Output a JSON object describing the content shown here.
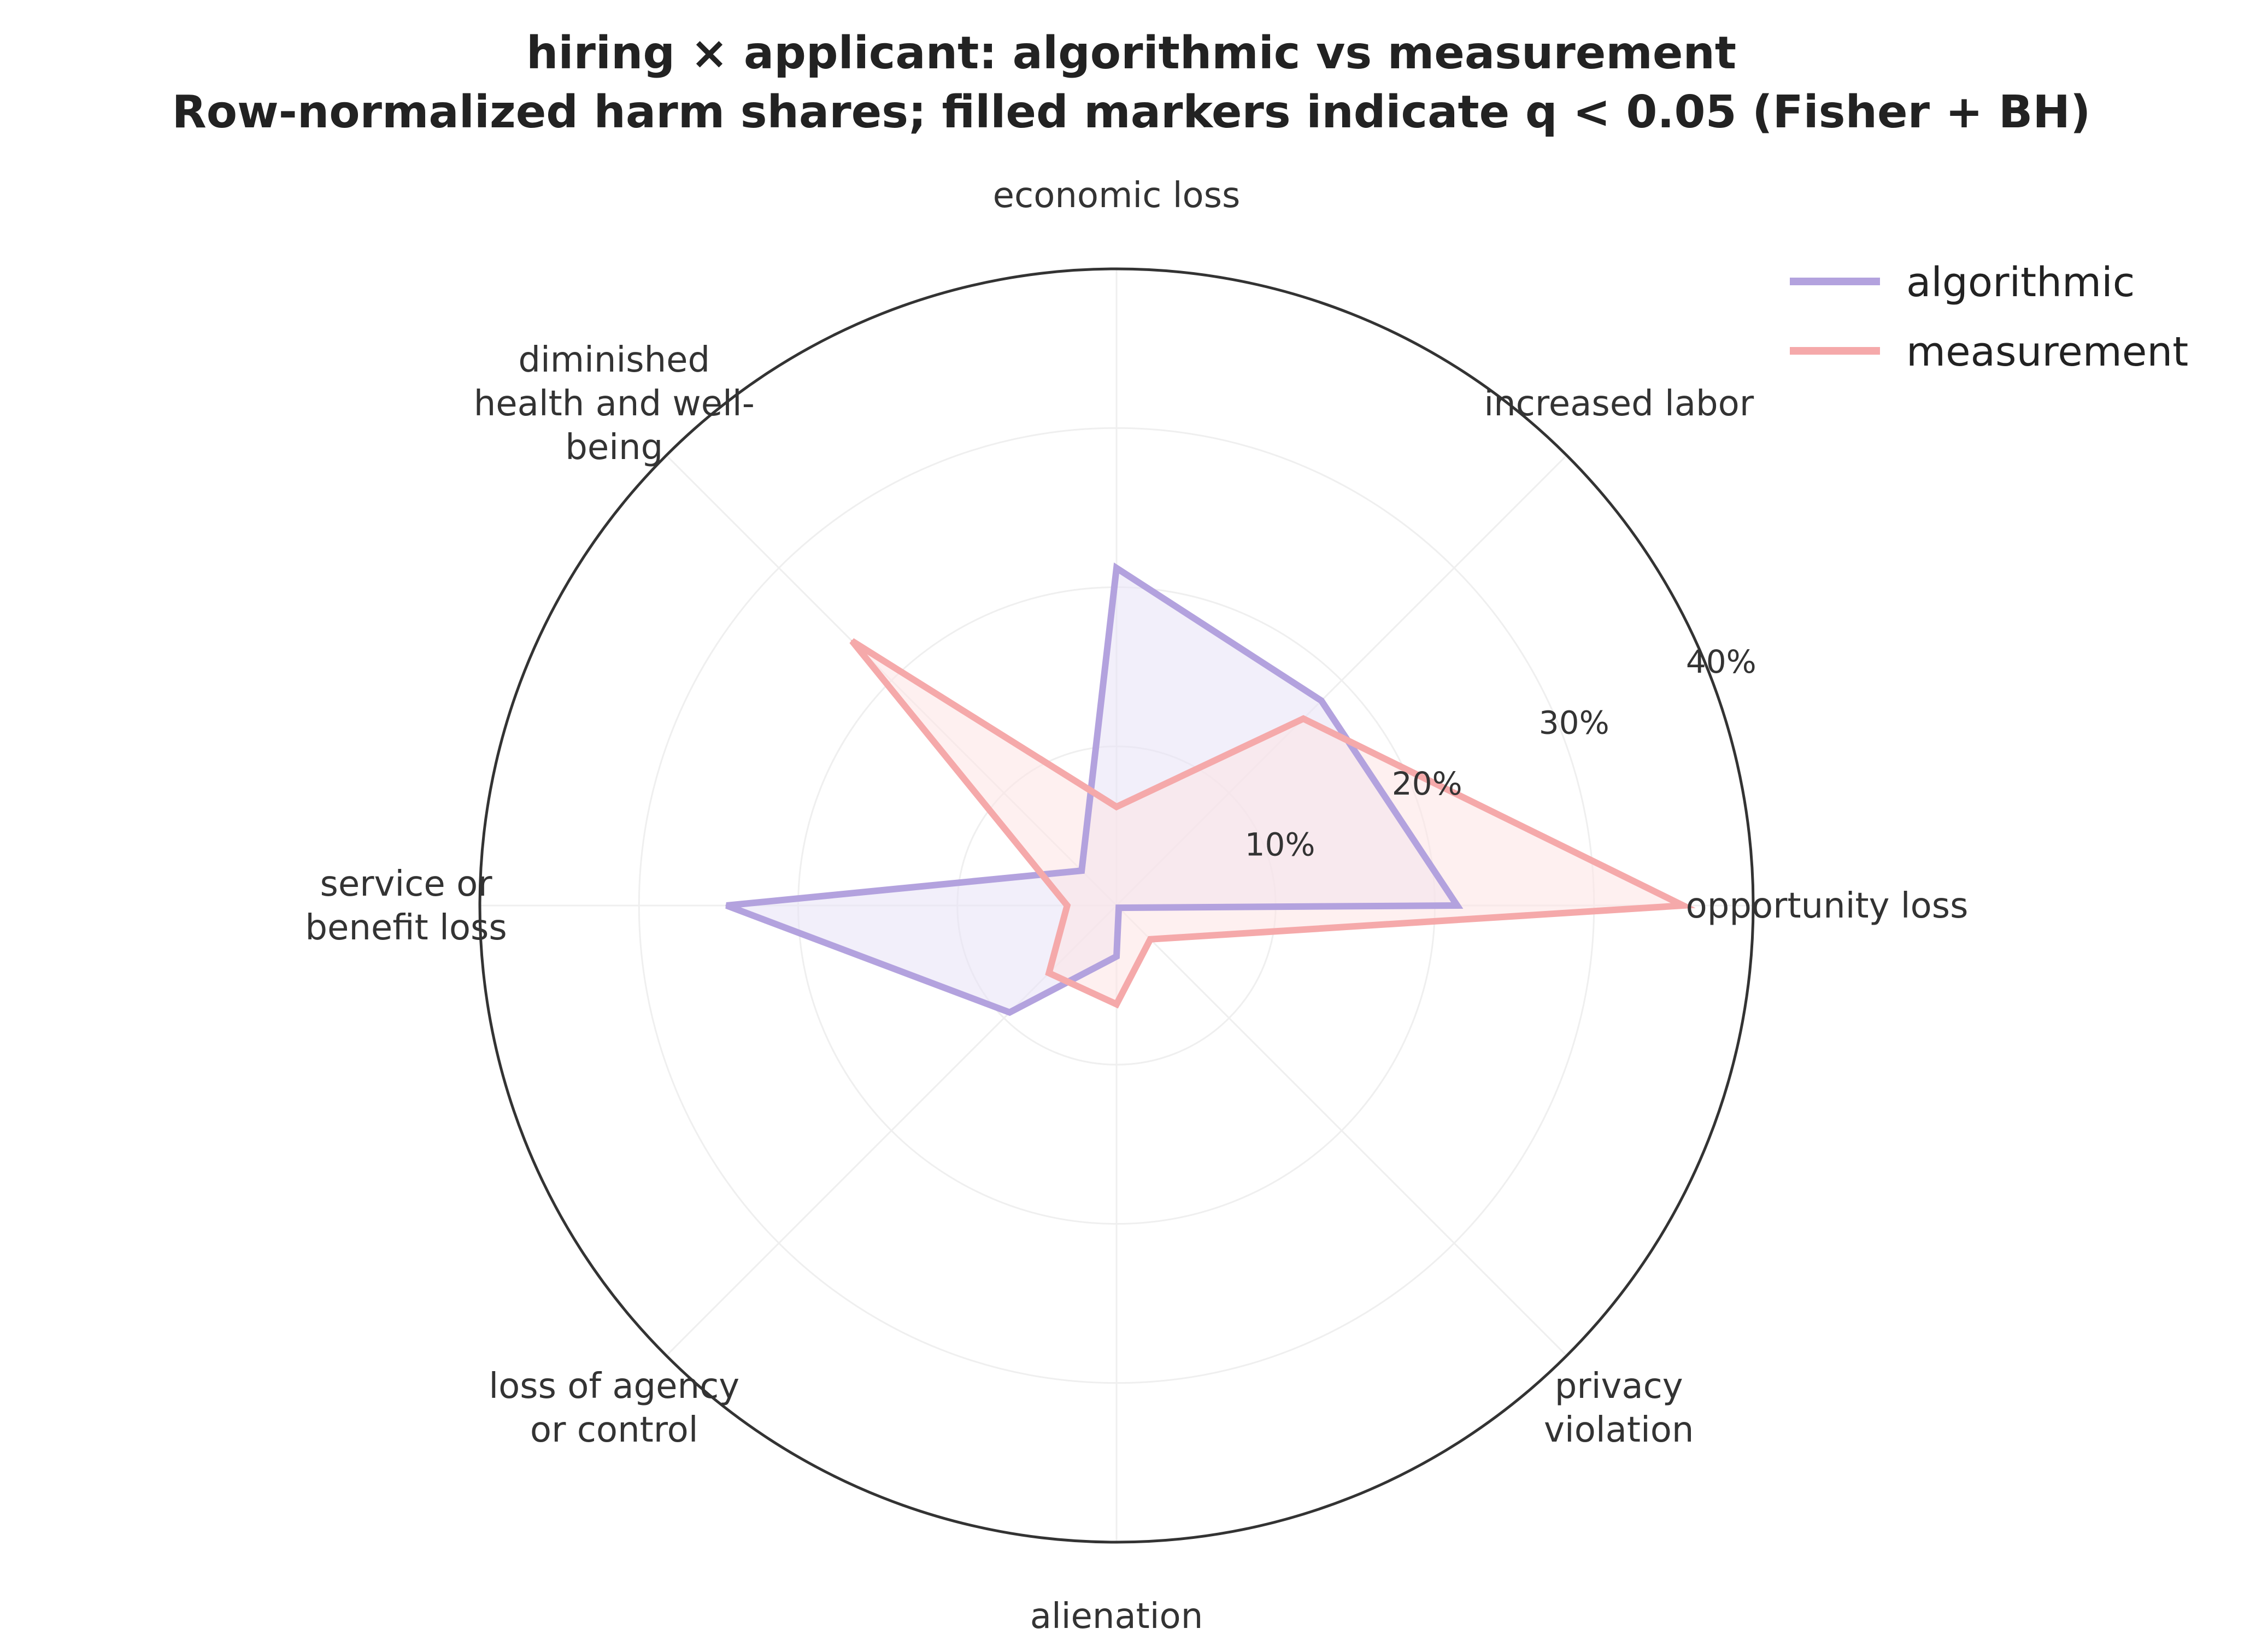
{
  "chart_data": {
    "type": "radar",
    "title_lines": [
      "hiring × applicant: algorithmic vs measurement",
      "Row-normalized harm shares; filled markers indicate q < 0.05 (Fisher + BH)"
    ],
    "axes": [
      {
        "label_lines": [
          "opportunity loss"
        ]
      },
      {
        "label_lines": [
          "increased labor"
        ]
      },
      {
        "label_lines": [
          "economic loss"
        ]
      },
      {
        "label_lines": [
          "diminished",
          "health and well-",
          "being"
        ]
      },
      {
        "label_lines": [
          "service or",
          "benefit loss"
        ]
      },
      {
        "label_lines": [
          "loss of agency",
          "or control"
        ]
      },
      {
        "label_lines": [
          "alienation"
        ]
      },
      {
        "label_lines": [
          "privacy",
          "violation"
        ]
      }
    ],
    "r_max": 40,
    "r_ticks": [
      10,
      20,
      30,
      40
    ],
    "r_tick_labels": [
      "10%",
      "20%",
      "30%",
      "40%"
    ],
    "grid": true,
    "legend_position": "top-right",
    "series": [
      {
        "name": "algorithmic",
        "color": "#b3a2de",
        "fill": "#e8e2f6",
        "values": [
          21.4,
          18.2,
          21.2,
          3.1,
          24.5,
          9.5,
          3.2,
          0.2
        ]
      },
      {
        "name": "measurement",
        "color": "#f5a9aa",
        "fill": "#fde3e3",
        "values": [
          35.6,
          16.6,
          6.2,
          23.5,
          3.1,
          6.0,
          6.2,
          3.0
        ]
      }
    ]
  }
}
